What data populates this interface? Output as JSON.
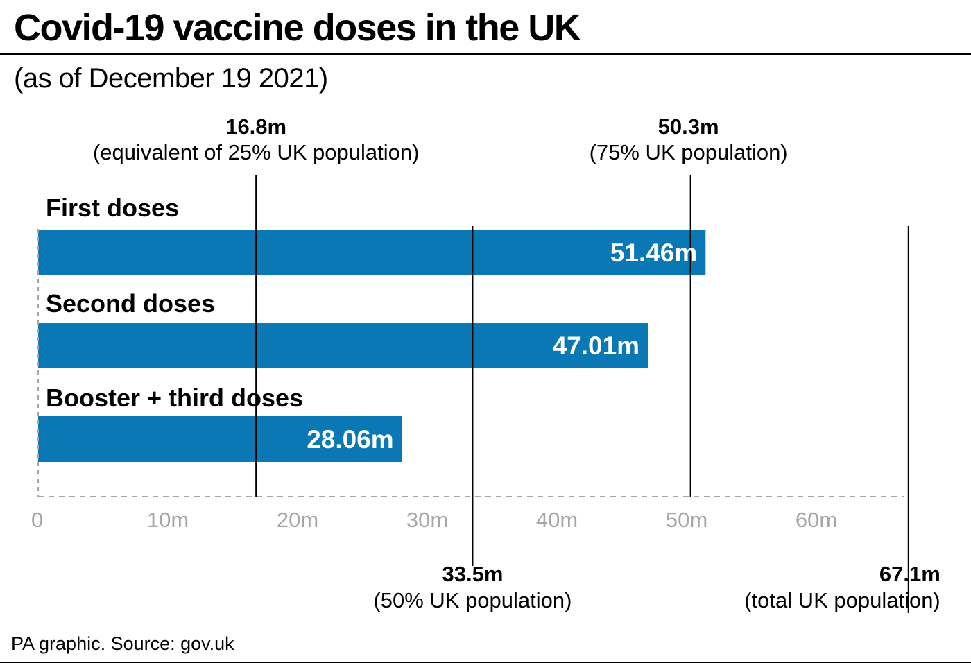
{
  "header": {
    "title": "Covid-19 vaccine doses in the UK",
    "subtitle": "(as of December 19 2021)"
  },
  "footer": {
    "source": "PA graphic. Source: gov.uk"
  },
  "colors": {
    "bar": "#0a78b4",
    "reference_line": "#000000",
    "axis": "#a6a6a6",
    "tick_label": "#a6a6a6"
  },
  "chart_data": {
    "type": "bar",
    "orientation": "horizontal",
    "title": "Covid-19 vaccine doses in the UK",
    "subtitle": "(as of December 19 2021)",
    "categories": [
      "First doses",
      "Second doses",
      "Booster + third doses"
    ],
    "values": [
      51.46,
      47.01,
      28.06
    ],
    "value_labels": [
      "51.46m",
      "47.01m",
      "28.06m"
    ],
    "unit": "m",
    "xlim": [
      0,
      67.1
    ],
    "x_ticks": [
      0,
      10,
      20,
      30,
      40,
      50,
      60
    ],
    "x_tick_labels": [
      "0",
      "10m",
      "20m",
      "30m",
      "40m",
      "50m",
      "60m"
    ],
    "grid": false,
    "legend": "none",
    "reference_lines": [
      {
        "value": 16.8,
        "label": "16.8m",
        "description": "(equivalent of 25% UK population)",
        "position": "top"
      },
      {
        "value": 50.3,
        "label": "50.3m",
        "description": "(75% UK population)",
        "position": "top"
      },
      {
        "value": 33.5,
        "label": "33.5m",
        "description": "(50% UK population)",
        "position": "bottom"
      },
      {
        "value": 67.1,
        "label": "67.1m",
        "description": "(total UK population)",
        "position": "bottom"
      }
    ]
  }
}
